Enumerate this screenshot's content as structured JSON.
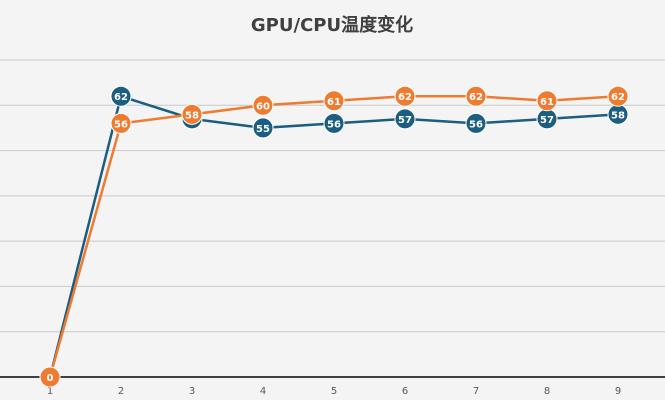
{
  "chart_data": {
    "type": "line",
    "title": "GPU/CPU温度变化",
    "categories": [
      "1",
      "2",
      "3",
      "4",
      "5",
      "6",
      "7",
      "8",
      "9"
    ],
    "series": [
      {
        "color": "#1b5e80",
        "values": [
          0,
          62,
          57,
          55,
          56,
          57,
          56,
          57,
          58
        ]
      },
      {
        "color": "#ee7b30",
        "values": [
          0,
          56,
          58,
          60,
          61,
          62,
          62,
          61,
          62
        ]
      }
    ],
    "ylim": [
      0,
      70
    ],
    "yticks": [
      0,
      10,
      20,
      30,
      40,
      50,
      60,
      70
    ],
    "grid": true,
    "data_labels": true
  }
}
